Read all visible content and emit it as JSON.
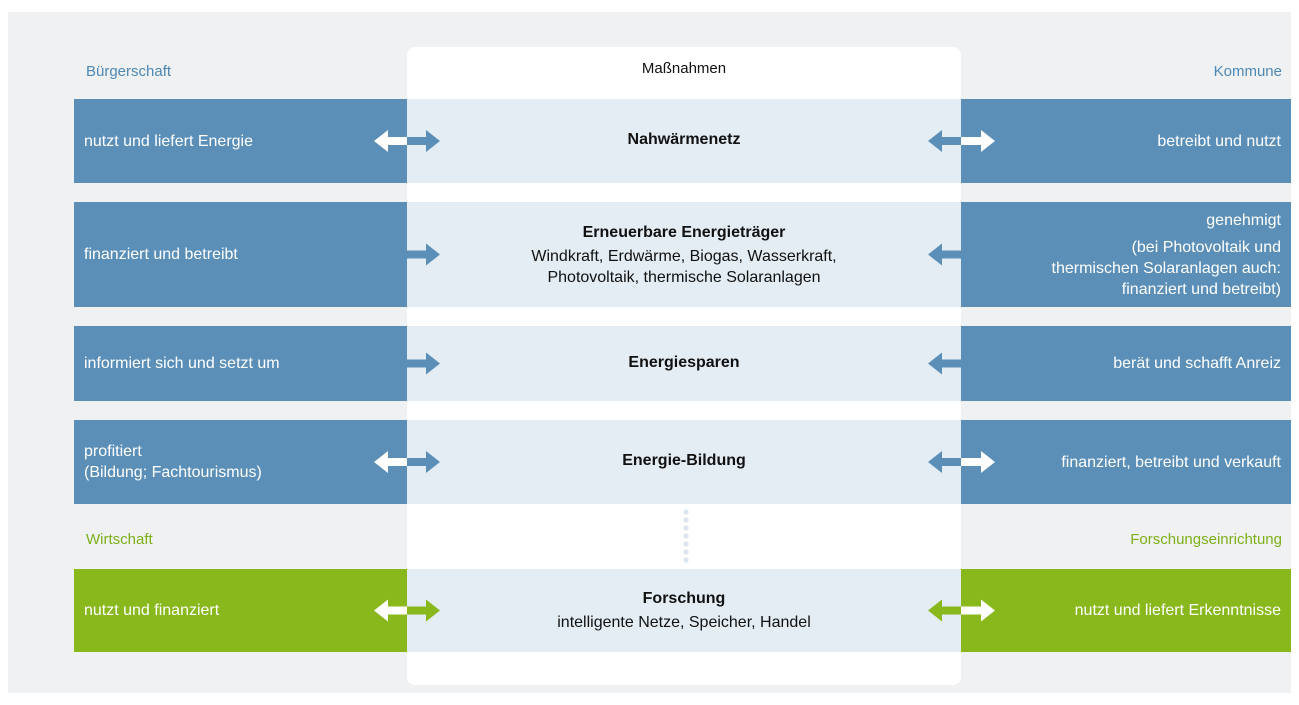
{
  "center_header": "Maßnahmen",
  "groups": [
    {
      "left": "Bürgerschaft",
      "right": "Kommune",
      "rows": [
        {
          "left": "nutzt und liefert Energie",
          "title": "Nahwärmenetz",
          "right": "betreibt und nutzt"
        },
        {
          "left": "finanziert und betreibt",
          "title": "Erneuerbare Energieträger",
          "subtitle": [
            "Windkraft, Erdwärme, Biogas, Wasserkraft,",
            "Photovoltaik, thermische Solaranlagen"
          ],
          "right": [
            "genehmigt",
            "(bei Photovoltaik und",
            "thermischen Solaranlagen auch:",
            "finanziert und betreibt)"
          ]
        },
        {
          "left": "informiert sich und setzt um",
          "title": "Energiesparen",
          "right": "berät und schafft Anreiz"
        },
        {
          "left": [
            "profitiert",
            "(Bildung; Fachtourismus)"
          ],
          "title": "Energie-Bildung",
          "right": "finanziert, betreibt und verkauft"
        }
      ]
    },
    {
      "left": "Wirtschaft",
      "right": "Forschungseinrichtung",
      "rows": [
        {
          "left": "nutzt und finanziert",
          "title": "Forschung",
          "subtitle": "intelligente Netze, Speicher, Handel",
          "right": "nutzt und liefert Erkenntnisse"
        }
      ]
    }
  ]
}
